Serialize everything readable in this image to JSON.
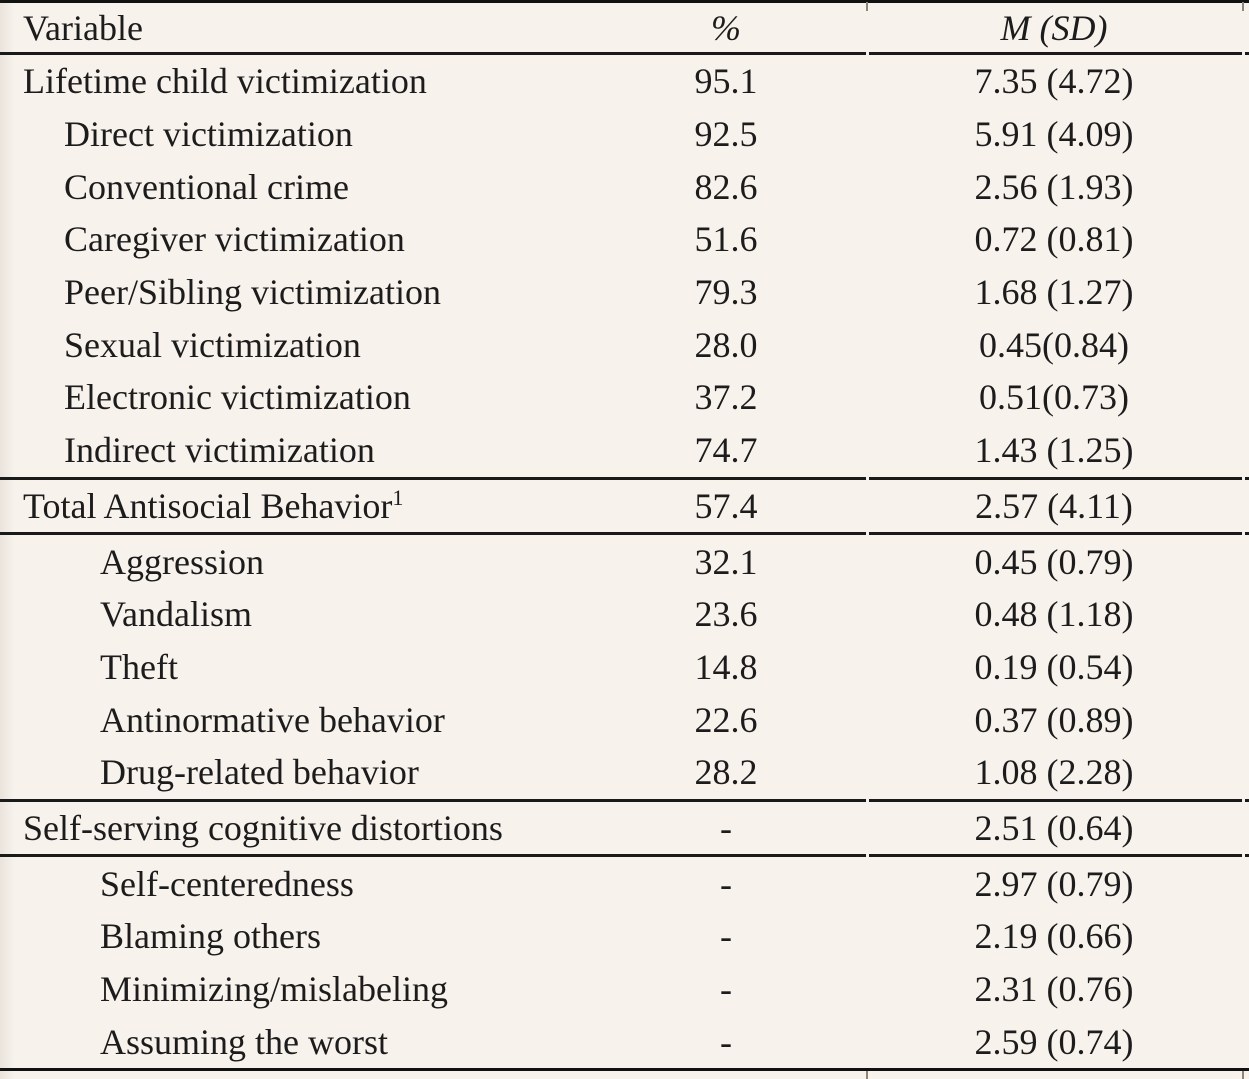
{
  "page": {
    "background_color": "#f8f2ec",
    "text_color": "#1c1c1c",
    "rule_color": "#1a1a1a"
  },
  "table": {
    "header": {
      "variable": "Variable",
      "percent": "%",
      "msd": "M (SD)"
    },
    "rows": [
      {
        "label": "Lifetime child victimization",
        "indent": 0,
        "pct": "95.1",
        "msd": "7.35 (4.72)"
      },
      {
        "label": "Direct victimization",
        "indent": 1,
        "pct": "92.5",
        "msd": "5.91 (4.09)"
      },
      {
        "label": "Conventional crime",
        "indent": 1,
        "pct": "82.6",
        "msd": "2.56 (1.93)"
      },
      {
        "label": "Caregiver victimization",
        "indent": 1,
        "pct": "51.6",
        "msd": "0.72 (0.81)"
      },
      {
        "label": "Peer/Sibling victimization",
        "indent": 1,
        "pct": "79.3",
        "msd": "1.68 (1.27)"
      },
      {
        "label": "Sexual victimization",
        "indent": 1,
        "pct": "28.0",
        "msd": "0.45(0.84)"
      },
      {
        "label": "Electronic victimization",
        "indent": 1,
        "pct": "37.2",
        "msd": "0.51(0.73)"
      },
      {
        "label": "Indirect victimization",
        "indent": 1,
        "pct": "74.7",
        "msd": "1.43 (1.25)"
      },
      {
        "label": "Total Antisocial Behavior",
        "sup": "1",
        "indent": 0,
        "pct": "57.4",
        "msd": "2.57 (4.11)",
        "ruleAbove": true,
        "ruleBelow": true
      },
      {
        "label": "Aggression",
        "indent": 2,
        "pct": "32.1",
        "msd": "0.45 (0.79)"
      },
      {
        "label": "Vandalism",
        "indent": 2,
        "pct": "23.6",
        "msd": "0.48 (1.18)"
      },
      {
        "label": "Theft",
        "indent": 2,
        "pct": "14.8",
        "msd": "0.19 (0.54)"
      },
      {
        "label": "Antinormative behavior",
        "indent": 2,
        "pct": "22.6",
        "msd": "0.37 (0.89)"
      },
      {
        "label": "Drug-related behavior",
        "indent": 2,
        "pct": "28.2",
        "msd": "1.08 (2.28)"
      },
      {
        "label": "Self-serving cognitive distortions",
        "indent": 0,
        "pct": "-",
        "msd": "2.51 (0.64)",
        "ruleAbove": true,
        "ruleBelow": true
      },
      {
        "label": "Self-centeredness",
        "indent": 2,
        "pct": "-",
        "msd": "2.97 (0.79)"
      },
      {
        "label": "Blaming others",
        "indent": 2,
        "pct": "-",
        "msd": "2.19 (0.66)"
      },
      {
        "label": "Minimizing/mislabeling",
        "indent": 2,
        "pct": "-",
        "msd": "2.31 (0.76)"
      },
      {
        "label": "Assuming the worst",
        "indent": 2,
        "pct": "-",
        "msd": "2.59 (0.74)"
      }
    ]
  }
}
